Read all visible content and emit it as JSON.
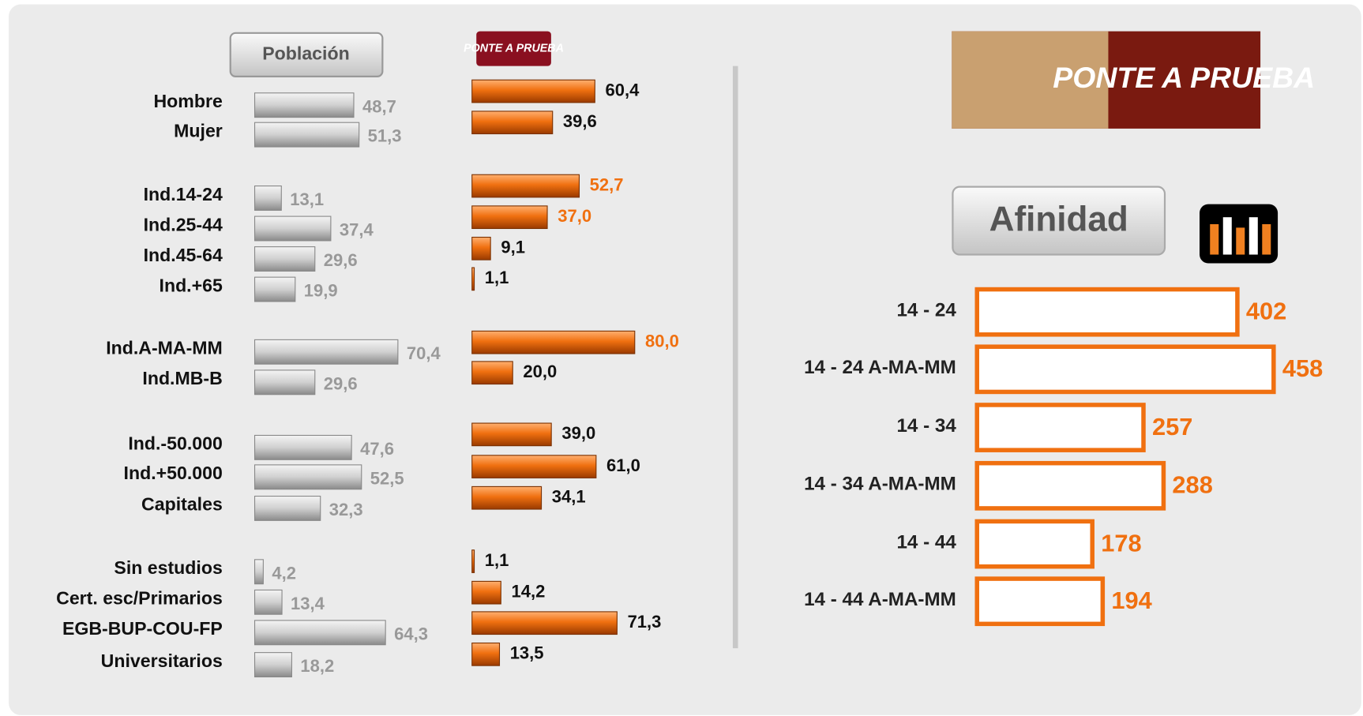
{
  "chart_data": [
    {
      "type": "hbar-pair",
      "categories": [
        "Hombre",
        "Mujer",
        "Ind.14-24",
        "Ind.25-44",
        "Ind.45-64",
        "Ind.+65",
        "Ind.A-MA-MM",
        "Ind.MB-B",
        "Ind.-50.000",
        "Ind.+50.000",
        "Capitales",
        "Sin estudios",
        "Cert. esc/Primarios",
        "EGB-BUP-COU-FP",
        "Universitarios"
      ],
      "series": [
        {
          "name": "Población",
          "color": "#c8c8c8",
          "values": [
            48.7,
            51.3,
            13.1,
            37.4,
            29.6,
            19.9,
            70.4,
            29.6,
            47.6,
            52.5,
            32.3,
            4.2,
            13.4,
            64.3,
            18.2
          ],
          "value_labels": [
            "48,7",
            "51,3",
            "13,1",
            "37,4",
            "29,6",
            "19,9",
            "70,4",
            "29,6",
            "47,6",
            "52,5",
            "32,3",
            "4,2",
            "13,4",
            "64,3",
            "18,2"
          ],
          "value_label_color": "#999999"
        },
        {
          "name": "PONTE A PRUEBA",
          "color": "#f07010",
          "values": [
            60.4,
            39.6,
            52.7,
            37.0,
            9.1,
            1.1,
            80.0,
            20.0,
            39.0,
            61.0,
            34.1,
            1.1,
            14.2,
            71.3,
            13.5
          ],
          "value_labels": [
            "60,4",
            "39,6",
            "52,7",
            "37,0",
            "9,1",
            "1,1",
            "80,0",
            "20,0",
            "39,0",
            "61,0",
            "34,1",
            "1,1",
            "14,2",
            "71,3",
            "13,5"
          ],
          "value_label_colors": [
            "#111111",
            "#111111",
            "#f07010",
            "#f07010",
            "#111111",
            "#111111",
            "#f07010",
            "#111111",
            "#111111",
            "#111111",
            "#111111",
            "#111111",
            "#111111",
            "#111111",
            "#111111"
          ]
        }
      ]
    },
    {
      "type": "hbar-outline",
      "title": "Afinidad",
      "categories": [
        "14 - 24",
        "14 - 24 A-MA-MM",
        "14 - 34",
        "14 - 34 A-MA-MM",
        "14 - 44",
        "14 - 44 A-MA-MM"
      ],
      "values": [
        402,
        458,
        257,
        288,
        178,
        194
      ],
      "color": "#f07010"
    }
  ]
}
